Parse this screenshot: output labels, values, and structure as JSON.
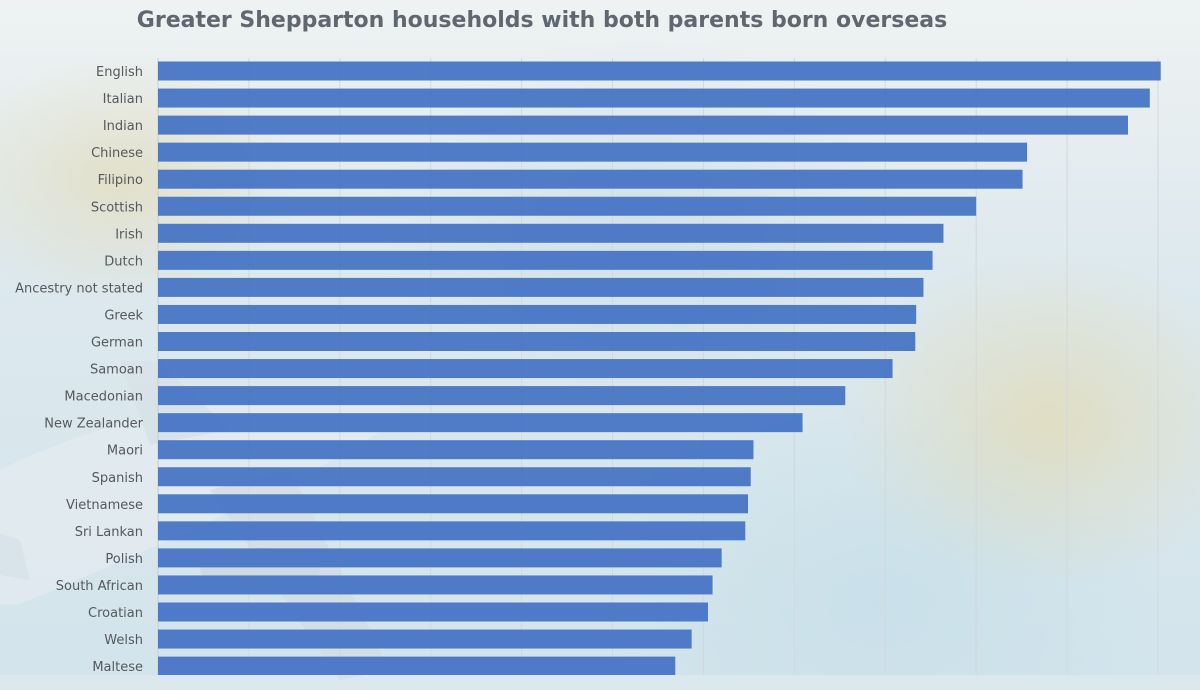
{
  "chart_data": {
    "type": "bar",
    "orientation": "horizontal",
    "title": "Greater Shepparton households with both parents born overseas",
    "xlabel": "",
    "ylabel": "",
    "grid": true,
    "xlim": [
      0,
      1100
    ],
    "bar_color": "#4472c4",
    "categories": [
      "English",
      "Italian",
      "Indian",
      "Chinese",
      "Filipino",
      "Scottish",
      "Irish",
      "Dutch",
      "Ancestry not stated",
      "Greek",
      "German",
      "Samoan",
      "Macedonian",
      "New Zealander",
      "Maori",
      "Spanish",
      "Vietnamese",
      "Sri Lankan",
      "Polish",
      "South African",
      "Croatian",
      "Welsh",
      "Maltese"
    ],
    "values": [
      1103,
      1091,
      1067,
      956,
      951,
      900,
      864,
      852,
      842,
      834,
      833,
      808,
      756,
      709,
      655,
      652,
      649,
      646,
      620,
      610,
      605,
      587,
      569
    ]
  }
}
